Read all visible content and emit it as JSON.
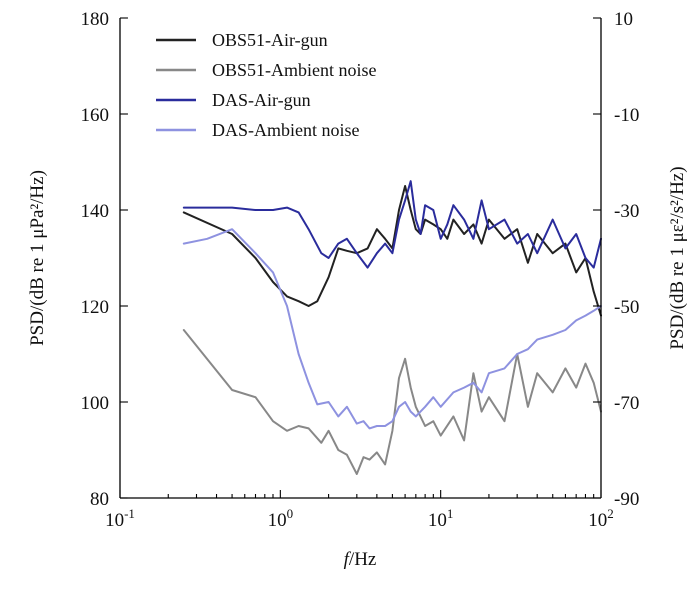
{
  "chart_data": {
    "type": "line",
    "x_scale": "log",
    "xlim": [
      0.1,
      100
    ],
    "ylim_left": [
      80,
      180
    ],
    "ylim_right": [
      -90,
      10
    ],
    "grid": false,
    "legend_position": "top-left",
    "xlabel_italic": "f",
    "xlabel_rest": "/Hz",
    "ylabel_left": "PSD/(dB re 1 μPa²/Hz)",
    "ylabel_right": "PSD/(dB re 1 με²/s²/Hz)",
    "x_ticks": [
      {
        "value": 0.1,
        "base": "10",
        "exp": "-1"
      },
      {
        "value": 1,
        "base": "10",
        "exp": "0"
      },
      {
        "value": 10,
        "base": "10",
        "exp": "1"
      },
      {
        "value": 100,
        "base": "10",
        "exp": "2"
      }
    ],
    "y_ticks_left": [
      "80",
      "100",
      "120",
      "140",
      "160",
      "180"
    ],
    "y_ticks_right": [
      "-90",
      "-70",
      "-50",
      "-30",
      "-10",
      "10"
    ],
    "series": [
      {
        "name": "OBS51-Air-gun",
        "axis": "left",
        "color": "#222222",
        "x": [
          0.25,
          0.5,
          0.7,
          0.9,
          1.1,
          1.3,
          1.5,
          1.7,
          2.0,
          2.3,
          2.6,
          3.0,
          3.5,
          4.0,
          4.5,
          5.0,
          5.5,
          6.0,
          6.5,
          7.0,
          7.5,
          8.0,
          9.0,
          10,
          11,
          12,
          14,
          16,
          18,
          20,
          25,
          30,
          35,
          40,
          50,
          60,
          70,
          80,
          90,
          100
        ],
        "y": [
          139.5,
          135,
          130,
          125,
          122,
          121,
          120,
          121,
          126,
          132,
          131.5,
          131,
          132,
          136,
          134,
          132,
          140,
          145,
          140,
          136,
          135,
          138,
          137,
          136,
          134,
          138,
          135,
          137,
          133,
          138,
          134,
          136,
          129,
          135,
          131,
          133,
          127,
          130,
          123,
          118
        ]
      },
      {
        "name": "OBS51-Ambient noise",
        "axis": "left",
        "color": "#888888",
        "x": [
          0.25,
          0.5,
          0.7,
          0.9,
          1.1,
          1.3,
          1.5,
          1.8,
          2.0,
          2.3,
          2.6,
          3.0,
          3.3,
          3.6,
          4.0,
          4.5,
          5.0,
          5.5,
          6.0,
          6.5,
          7.0,
          8.0,
          9.0,
          10,
          12,
          14,
          16,
          18,
          20,
          25,
          30,
          35,
          40,
          50,
          60,
          70,
          80,
          90,
          100
        ],
        "y": [
          115,
          102.5,
          101,
          96,
          94,
          95,
          94.5,
          91.5,
          94,
          90,
          89,
          85,
          88.5,
          88,
          89.5,
          87,
          94,
          105,
          109,
          103,
          99,
          95,
          96,
          93,
          97,
          92,
          106,
          98,
          101,
          96,
          110,
          99,
          106,
          102,
          107,
          103,
          108,
          104,
          98
        ]
      },
      {
        "name": "DAS-Air-gun",
        "axis": "left",
        "color": "#2a2c9c",
        "x": [
          0.25,
          0.5,
          0.7,
          0.9,
          1.1,
          1.3,
          1.5,
          1.8,
          2.0,
          2.3,
          2.6,
          3.0,
          3.5,
          4.0,
          4.5,
          5.0,
          5.5,
          6.0,
          6.5,
          7.0,
          7.5,
          8.0,
          9.0,
          10,
          11,
          12,
          14,
          16,
          18,
          20,
          25,
          30,
          35,
          40,
          50,
          60,
          70,
          80,
          90,
          100
        ],
        "y": [
          140.5,
          140.5,
          140,
          140,
          140.5,
          139.5,
          136,
          131,
          130,
          133,
          134,
          131,
          128,
          131,
          133,
          131,
          138,
          142,
          146,
          138,
          135,
          141,
          140,
          134,
          137,
          141,
          138,
          134,
          142,
          136,
          138,
          133,
          135,
          131,
          138,
          132,
          135,
          130,
          128,
          134
        ]
      },
      {
        "name": "DAS-Ambient noise",
        "axis": "left",
        "color": "#8e92e0",
        "x": [
          0.25,
          0.35,
          0.5,
          0.7,
          0.9,
          1.1,
          1.3,
          1.5,
          1.7,
          2.0,
          2.3,
          2.6,
          3.0,
          3.3,
          3.6,
          4.0,
          4.5,
          5.0,
          5.5,
          6.0,
          6.5,
          7.0,
          8.0,
          9.0,
          10,
          12,
          14,
          16,
          18,
          20,
          25,
          30,
          35,
          40,
          50,
          60,
          70,
          80,
          90,
          100
        ],
        "y": [
          133,
          134,
          136,
          131,
          127,
          120,
          110,
          104,
          99.5,
          100,
          97,
          99,
          95.5,
          96,
          94.5,
          95,
          95,
          96,
          99,
          100,
          98,
          97,
          99,
          101,
          99,
          102,
          103,
          104,
          102,
          106,
          107,
          110,
          111,
          113,
          114,
          115,
          117,
          118,
          119,
          120
        ]
      }
    ]
  }
}
